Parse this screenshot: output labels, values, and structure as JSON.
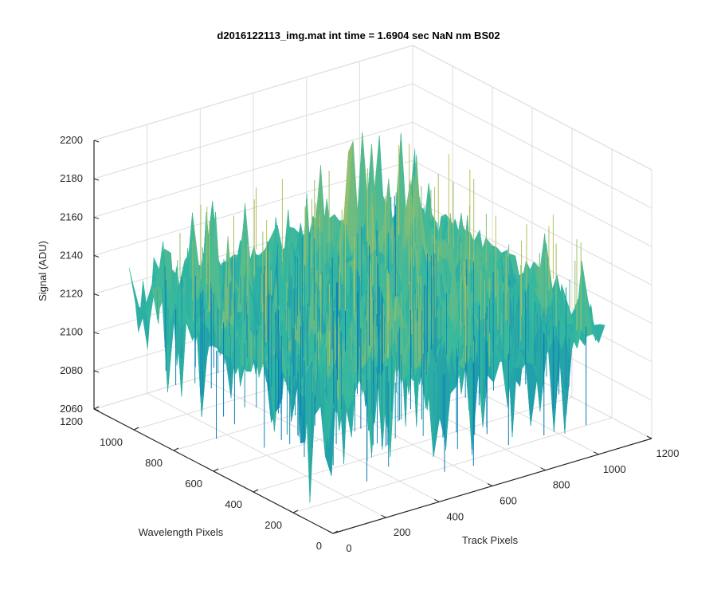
{
  "chart_data": {
    "type": "surface",
    "title": "d2016122113_img.mat int time = 1.6904 sec  NaN nm BS02",
    "xlabel": "Track Pixels",
    "ylabel": "Wavelength Pixels",
    "zlabel": "Signal (ADU)",
    "xlim": [
      0,
      1200
    ],
    "ylim": [
      0,
      1200
    ],
    "zlim": [
      2060,
      2200
    ],
    "x_ticks": [
      0,
      200,
      400,
      600,
      800,
      1000,
      1200
    ],
    "y_ticks": [
      0,
      200,
      400,
      600,
      800,
      1000,
      1200
    ],
    "z_ticks": [
      2060,
      2080,
      2100,
      2120,
      2140,
      2160,
      2180,
      2200
    ],
    "x_tick_labels": [
      "0",
      "200",
      "400",
      "600",
      "800",
      "1000",
      "1200"
    ],
    "y_tick_labels": [
      "0",
      "200",
      "400",
      "600",
      "800",
      "1000",
      "1200"
    ],
    "z_tick_labels": [
      "2060",
      "2080",
      "2100",
      "2120",
      "2140",
      "2160",
      "2180",
      "2200"
    ],
    "data_extent": {
      "x": [
        0,
        1024
      ],
      "y": [
        0,
        1024
      ]
    },
    "approx_mean_signal": 2130,
    "approx_signal_range": [
      2065,
      2195
    ],
    "grid": true,
    "box": true,
    "colormap": "parula",
    "colors": {
      "low": "#0072BD",
      "mid": "#33B8A0",
      "high": "#F5C53A"
    }
  }
}
